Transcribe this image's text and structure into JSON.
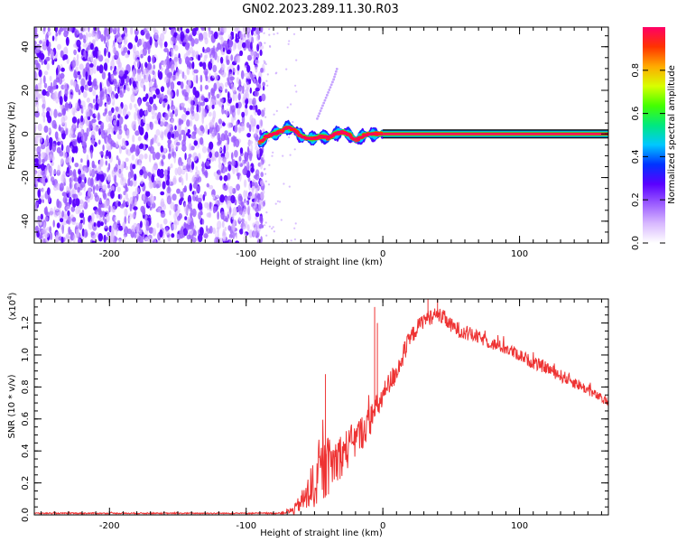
{
  "title": "GN02.2023.289.11.30.R03",
  "chart_data": [
    {
      "type": "heatmap",
      "name": "spectrogram",
      "xlabel": "Height of straight line (km)",
      "ylabel": "Frequency (Hz)",
      "xlim": [
        -255,
        165
      ],
      "ylim": [
        -50,
        49
      ],
      "xticks": [
        -200,
        -100,
        0,
        100
      ],
      "xtick_labels": [
        "-200",
        "-100",
        "0",
        "100"
      ],
      "yticks": [
        -40,
        -20,
        0,
        20,
        40
      ],
      "ytick_labels": [
        "-40",
        "-20",
        "0",
        "20",
        "40"
      ],
      "noise_region_x": [
        -255,
        -87
      ],
      "noise_amplitude": 0.15,
      "scattered_points_x": [
        -87,
        -60
      ],
      "chirp_trace": {
        "x": [
          -48,
          -44,
          -40,
          -36,
          -33
        ],
        "y": [
          7,
          13,
          19,
          25,
          31
        ],
        "amplitude": 0.05
      },
      "signal_track": {
        "x": [
          -90,
          -85,
          -80,
          -75,
          -70,
          -65,
          -60,
          -55,
          -50,
          -45,
          -40,
          -35,
          -30,
          -25,
          -20,
          -15,
          -10,
          -5,
          0,
          50,
          100,
          165
        ],
        "y": [
          -4,
          -1,
          0,
          1,
          3,
          2,
          -1,
          -2,
          -2,
          -1,
          -2,
          0,
          1,
          0,
          -3,
          -1,
          0,
          0,
          0,
          0,
          0,
          0
        ]
      },
      "colorbar": {
        "label": "Normalized spectral amplitude",
        "range": [
          0.0,
          1.0
        ],
        "ticks": [
          0.0,
          0.2,
          0.4,
          0.6,
          0.8
        ],
        "tick_labels": [
          "0.0",
          "0.2",
          "0.4",
          "0.6",
          "0.8"
        ],
        "colors": [
          "#ffffff",
          "#d8b8ff",
          "#9b5cff",
          "#5a00ff",
          "#0033ff",
          "#00c8ff",
          "#00e880",
          "#44ff00",
          "#d8ff00",
          "#ffaa00",
          "#ff3300",
          "#ff0066"
        ]
      }
    },
    {
      "type": "line",
      "name": "snr",
      "xlabel": "Height of straight line (km)",
      "ylabel": "SNR (10 * v/v)",
      "y_scale_label": "(x10",
      "y_scale_exponent": "4",
      "y_scale_suffix": ")",
      "xlim": [
        -255,
        165
      ],
      "ylim": [
        0,
        1.35
      ],
      "xticks": [
        -200,
        -100,
        0,
        100
      ],
      "xtick_labels": [
        "-200",
        "-100",
        "0",
        "100"
      ],
      "yticks": [
        0.0,
        0.2,
        0.4,
        0.6,
        0.8,
        1.0,
        1.2
      ],
      "ytick_labels": [
        "0.0",
        "0.2",
        "0.4",
        "0.6",
        "0.8",
        "1.0",
        "1.2"
      ],
      "color": "#ee3333",
      "series": [
        {
          "name": "SNR",
          "x": [
            -255,
            -150,
            -75,
            -65,
            -60,
            -55,
            -50,
            -45,
            -40,
            -35,
            -30,
            -25,
            -20,
            -15,
            -10,
            -5,
            0,
            5,
            10,
            15,
            20,
            25,
            30,
            35,
            40,
            45,
            50,
            60,
            70,
            80,
            90,
            100,
            110,
            120,
            130,
            140,
            150,
            165
          ],
          "values": [
            0.01,
            0.01,
            0.01,
            0.03,
            0.08,
            0.12,
            0.2,
            0.26,
            0.3,
            0.34,
            0.38,
            0.42,
            0.47,
            0.52,
            0.58,
            0.66,
            0.74,
            0.82,
            0.9,
            1.0,
            1.1,
            1.17,
            1.22,
            1.24,
            1.25,
            1.23,
            1.18,
            1.14,
            1.11,
            1.07,
            1.04,
            1.0,
            0.95,
            0.92,
            0.87,
            0.83,
            0.78,
            0.7
          ],
          "noise_spread": [
            0.004,
            0.004,
            0.004,
            0.03,
            0.06,
            0.12,
            0.16,
            0.2,
            0.18,
            0.16,
            0.14,
            0.13,
            0.12,
            0.11,
            0.1,
            0.09,
            0.08,
            0.08,
            0.07,
            0.07,
            0.06,
            0.05,
            0.05,
            0.05,
            0.05,
            0.05,
            0.05,
            0.05,
            0.04,
            0.04,
            0.04,
            0.04,
            0.04,
            0.04,
            0.04,
            0.04,
            0.03,
            0.03
          ]
        }
      ],
      "spikes": [
        {
          "x": -42,
          "y": 0.88
        },
        {
          "x": -6,
          "y": 1.3
        },
        {
          "x": -4,
          "y": 1.2
        },
        {
          "x": 33,
          "y": 1.35
        },
        {
          "x": 40,
          "y": 1.36
        }
      ]
    }
  ]
}
